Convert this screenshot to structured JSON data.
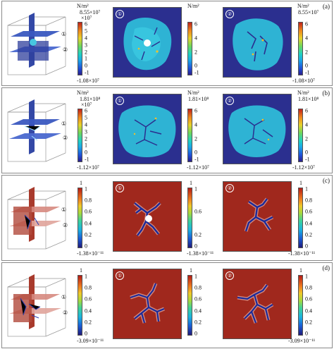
{
  "panels": [
    {
      "label": "(a)",
      "unit": "N/m²",
      "max": "8.55×10⁷",
      "min": "-1.08×10⁷",
      "exponent": "×10⁷",
      "ticks": [
        "6",
        "5",
        "4",
        "3",
        "2",
        "1",
        "0",
        "-1"
      ],
      "map_style": "stress",
      "views": [
        "①",
        "②"
      ],
      "cube_marks": [
        "①",
        "②"
      ]
    },
    {
      "label": "(b)",
      "unit": "N/m²",
      "max": "1.81×10⁸",
      "min": "-1.12×10⁷",
      "exponent": "×10⁷",
      "ticks": [
        "6",
        "5",
        "4",
        "3",
        "2",
        "1",
        "0",
        "-1"
      ],
      "map_style": "stress",
      "views": [
        "①",
        "②"
      ],
      "cube_marks": [
        "①",
        "②"
      ]
    },
    {
      "label": "(c)",
      "unit": "",
      "max": "1",
      "min": "-1.38×10⁻¹¹",
      "exponent": "",
      "ticks": [
        "1",
        "0.8",
        "0.6",
        "0.4",
        "0.2",
        "0"
      ],
      "map_style": "crack",
      "views": [
        "①",
        "②"
      ],
      "cube_marks": [
        "①",
        "②"
      ]
    },
    {
      "label": "(d)",
      "unit": "",
      "max": "1",
      "min": "-3.09×10⁻¹¹",
      "exponent": "",
      "ticks": [
        "1",
        "0.8",
        "0.6",
        "0.4",
        "0.2",
        "0"
      ],
      "map_style": "crack",
      "views": [
        "①",
        "②"
      ],
      "cube_marks": [
        "①",
        "②"
      ]
    }
  ],
  "colors": {
    "stress_bg": "#2b2f8f",
    "stress_field": "#2fc2dc",
    "crack_bg": "#a0281d",
    "crack_line": "#1a2a9a",
    "frame": "#8a8a8a"
  }
}
